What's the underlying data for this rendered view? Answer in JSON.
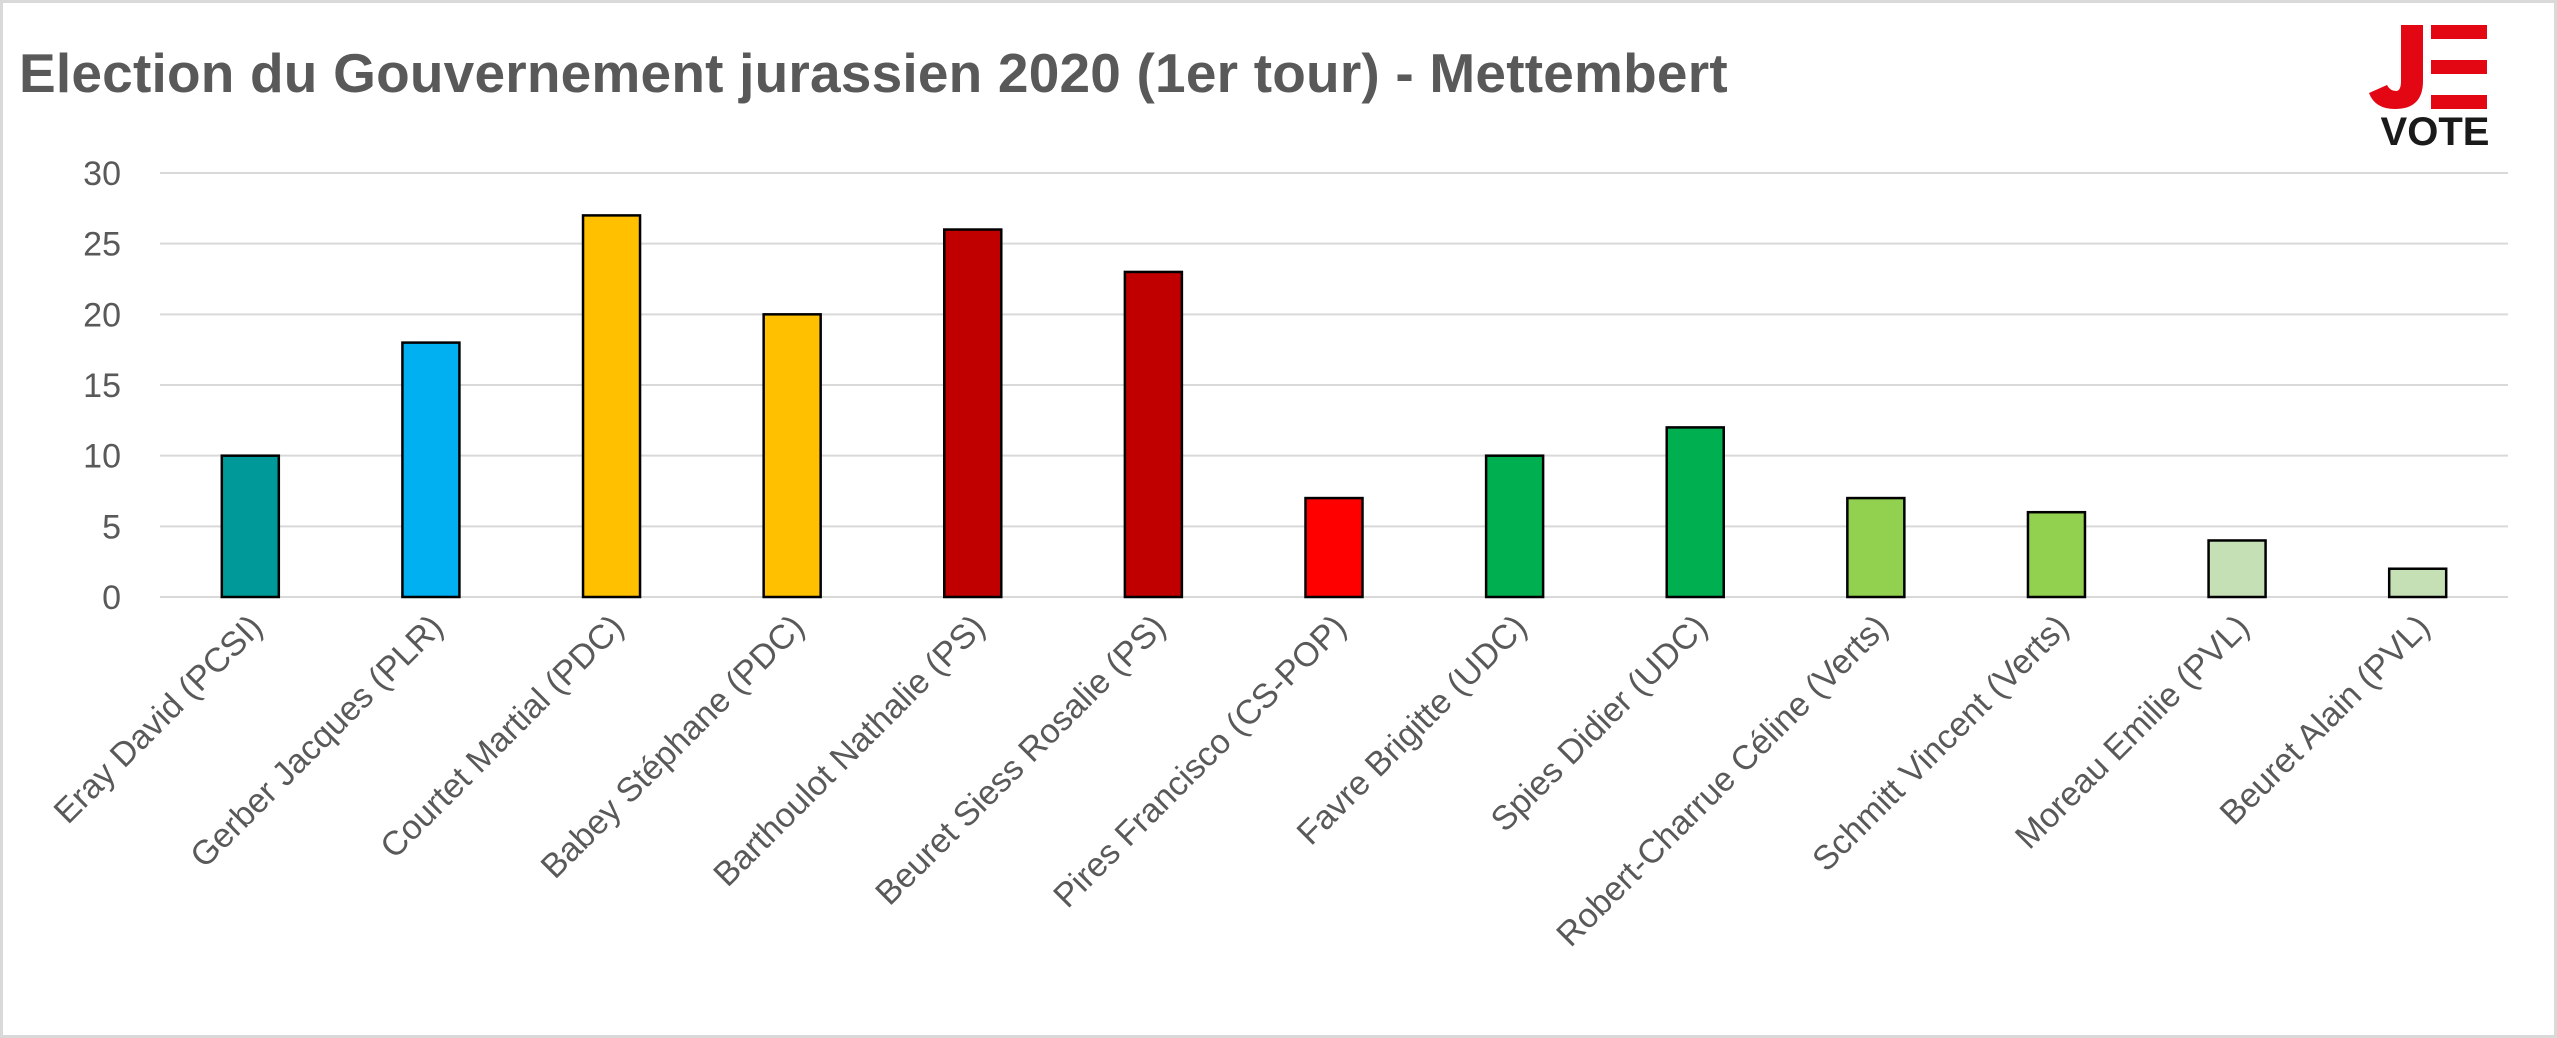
{
  "logo": {
    "letters": "JE",
    "word": "VOTE",
    "colors": {
      "red": "#e30613",
      "black": "#1a1a1a"
    }
  },
  "chart_data": {
    "type": "bar",
    "title": "Election du Gouvernement jurassien 2020 (1er tour) - Mettembert",
    "xlabel": "",
    "ylabel": "",
    "ylim": [
      0,
      30
    ],
    "yticks": [
      0,
      5,
      10,
      15,
      20,
      25,
      30
    ],
    "grid": true,
    "legend": "none",
    "categories": [
      "Eray David (PCSI)",
      "Gerber Jacques (PLR)",
      "Courtet Martial (PDC)",
      "Babey Stéphane (PDC)",
      "Barthoulot Nathalie (PS)",
      "Beuret Siess Rosalie (PS)",
      "Pires Francisco (CS-POP)",
      "Favre Brigitte (UDC)",
      "Spies Didier (UDC)",
      "Robert-Charrue Céline (Verts)",
      "Schmitt Vincent (Verts)",
      "Moreau Emilie (PVL)",
      "Beuret Alain (PVL)"
    ],
    "values": [
      10,
      18,
      27,
      20,
      26,
      23,
      7,
      10,
      12,
      7,
      6,
      4,
      2
    ],
    "colors": [
      "#009999",
      "#00b0f0",
      "#ffc000",
      "#ffc000",
      "#c00000",
      "#c00000",
      "#ff0000",
      "#00b050",
      "#00b050",
      "#92d050",
      "#92d050",
      "#c5e0b4",
      "#c5e0b4"
    ]
  }
}
